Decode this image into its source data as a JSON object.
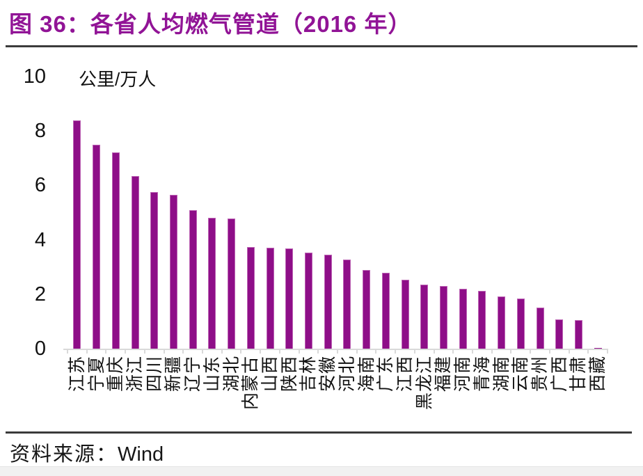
{
  "figure": {
    "title": "图 36：各省人均燃气管道（2016 年）",
    "source_label": "资料来源：",
    "source_value": "Wind"
  },
  "chart_data": {
    "type": "bar",
    "title": "各省人均燃气管道（2016 年）",
    "unit_label": "公里/万人",
    "ylabel": "公里/万人",
    "ylim": [
      0,
      10
    ],
    "yticks": [
      10,
      8,
      6,
      4,
      2,
      0
    ],
    "grid": false,
    "legend": "none",
    "bar_color": "#8e0e88",
    "categories": [
      "江苏",
      "宁夏",
      "重庆",
      "浙江",
      "四川",
      "新疆",
      "辽宁",
      "山东",
      "湖北",
      "内蒙古",
      "山西",
      "陕西",
      "吉林",
      "安徽",
      "河北",
      "海南",
      "广东",
      "江西",
      "黑龙江",
      "福建",
      "河南",
      "青海",
      "湖南",
      "云南",
      "贵州",
      "广西",
      "甘肃",
      "西藏"
    ],
    "values": [
      8.4,
      7.5,
      7.2,
      6.35,
      5.75,
      5.65,
      5.1,
      4.8,
      4.78,
      3.74,
      3.72,
      3.68,
      3.53,
      3.45,
      3.28,
      2.88,
      2.78,
      2.53,
      2.35,
      2.3,
      2.2,
      2.13,
      1.93,
      1.84,
      1.52,
      1.08,
      1.06,
      0.02
    ]
  },
  "colors": {
    "title": "#911496",
    "bar": "#8e0e88",
    "rule": "#3b3b3b",
    "axis": "#d9d9d9",
    "text": "#111111"
  }
}
